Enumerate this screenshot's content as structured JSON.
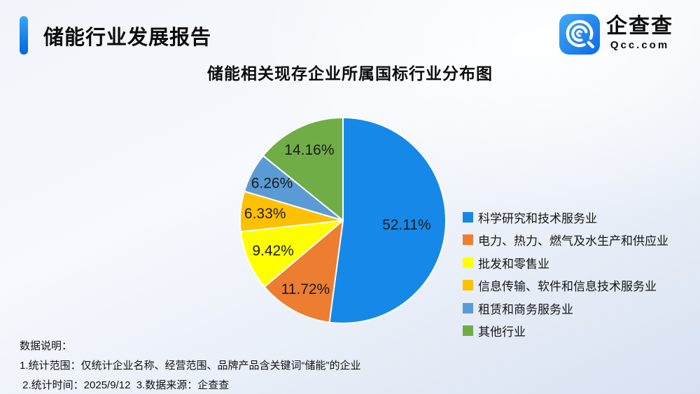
{
  "header": {
    "title": "储能行业发展报告",
    "logo": {
      "name": "企查查",
      "domain": "Qcc.com"
    }
  },
  "chart_data": {
    "type": "pie",
    "title": "储能相关现存企业所属国标行业分布图",
    "direction": "clockwise",
    "start_angle": "12-oclock",
    "legend_position": "right",
    "slices": [
      {
        "label": "科学研究和技术服务业",
        "value": 52.11,
        "display": "52.11%",
        "color": "#1689E8"
      },
      {
        "label": "电力、热力、燃气及水生产和供应业",
        "value": 11.72,
        "display": "11.72%",
        "color": "#ED7D31"
      },
      {
        "label": "批发和零售业",
        "value": 9.42,
        "display": "9.42%",
        "color": "#FFFF00"
      },
      {
        "label": "信息传输、软件和信息技术服务业",
        "value": 6.33,
        "display": "6.33%",
        "color": "#FFC000"
      },
      {
        "label": "租赁和商务服务业",
        "value": 6.26,
        "display": "6.26%",
        "color": "#5B9BD5"
      },
      {
        "label": "其他行业",
        "value": 14.16,
        "display": "14.16%",
        "color": "#70AD47"
      }
    ],
    "label_radius": [
      0.62,
      0.76,
      0.74,
      0.76,
      0.78,
      0.76
    ]
  },
  "notes": {
    "heading": "数据说明：",
    "line1": "1.统计范围：仅统计企业名称、经营范围、品牌产品含关键词“储能”的企业",
    "line2": " 2.统计时间：2025/9/12  3.数据来源：企查查"
  }
}
